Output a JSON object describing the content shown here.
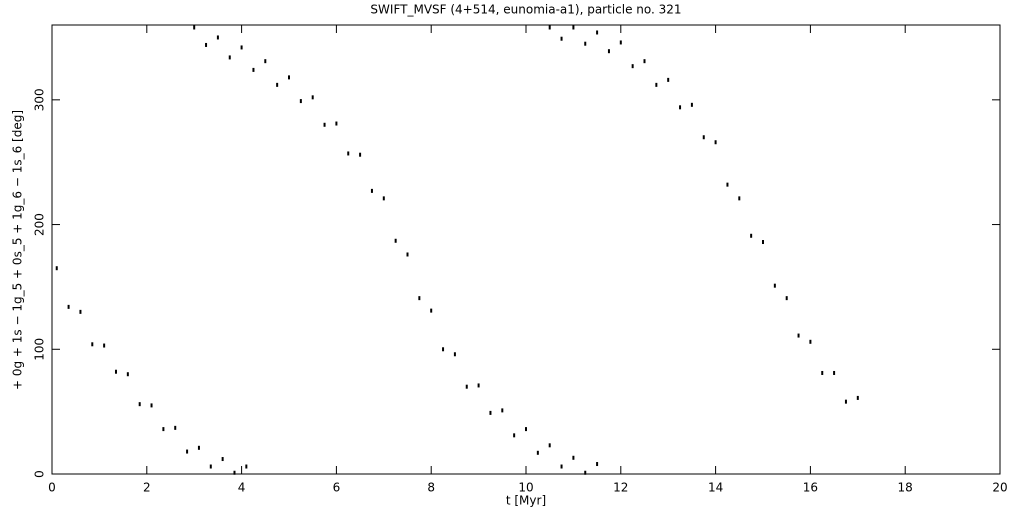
{
  "chart_data": {
    "type": "scatter",
    "title": "SWIFT_MVSF (4+514, eunomia-a1), particle no. 321",
    "x_label": "t [Myr]",
    "y_label": "+ 0g + 1s − 1g_5 + 0s_5 + 1g_6 − 1s_6 [deg]",
    "xlim": [
      0,
      20
    ],
    "ylim": [
      0,
      360
    ],
    "xticks": [
      0,
      2,
      4,
      6,
      8,
      10,
      12,
      14,
      16,
      18,
      20
    ],
    "yticks": [
      0,
      100,
      200,
      300
    ],
    "color": "#000000",
    "x": [
      0.1,
      0.35,
      0.6,
      0.85,
      1.1,
      1.35,
      1.6,
      1.85,
      2.1,
      2.35,
      2.6,
      2.85,
      3.1,
      3.35,
      3.6,
      3.85,
      4.1,
      3,
      3.25,
      3.5,
      3.75,
      4,
      4.25,
      4.5,
      4.75,
      5,
      5.25,
      5.5,
      5.75,
      6,
      6.25,
      6.5,
      6.75,
      7,
      7.25,
      7.5,
      7.75,
      8,
      8.25,
      8.5,
      8.75,
      9,
      9.25,
      9.5,
      9.75,
      10,
      10.25,
      10.5,
      10.75,
      11,
      11.25,
      11.5,
      10.5,
      10.75,
      11,
      11.25,
      11.5,
      11.75,
      12,
      12.25,
      12.5,
      12.75,
      13,
      13.25,
      13.5,
      13.75,
      14,
      14.25,
      14.5,
      14.75,
      15,
      15.25,
      15.5,
      15.75,
      16,
      16.25,
      16.5,
      16.75,
      17
    ],
    "y": [
      165,
      134,
      130,
      104,
      103,
      82,
      80,
      56,
      55,
      36,
      37,
      18,
      21,
      6,
      12,
      1,
      6,
      358,
      344,
      350,
      334,
      342,
      324,
      331,
      312,
      318,
      299,
      302,
      280,
      281,
      257,
      256,
      227,
      221,
      187,
      176,
      141,
      131,
      100,
      96,
      70,
      71,
      49,
      51,
      31,
      36,
      17,
      23,
      6,
      13,
      1,
      8,
      358,
      349,
      358,
      345,
      354,
      339,
      346,
      327,
      331,
      312,
      316,
      294,
      296,
      270,
      266,
      232,
      221,
      191,
      186,
      151,
      141,
      111,
      106,
      81,
      81,
      58,
      61
    ]
  }
}
